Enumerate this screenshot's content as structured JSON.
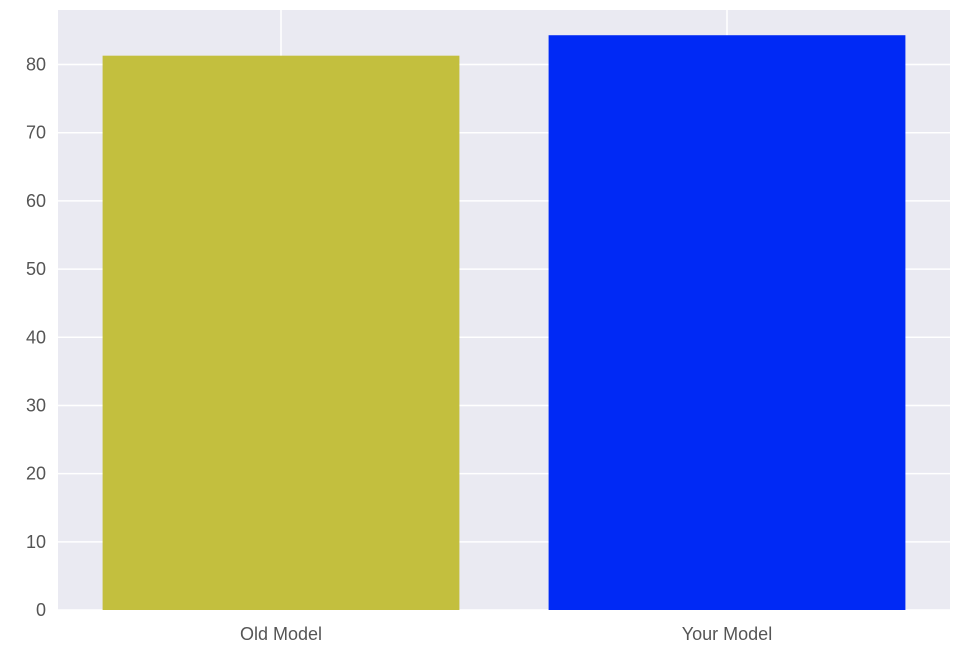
{
  "colors": {
    "plot_background": "#eaeaf2",
    "grid": "#ffffff",
    "tick_text": "#555555"
  },
  "chart_data": {
    "type": "bar",
    "categories": [
      "Old Model",
      "Your Model"
    ],
    "values": [
      81.3,
      84.3
    ],
    "bar_colors": [
      "#c3bf3e",
      "#0029f5"
    ],
    "title": "",
    "xlabel": "",
    "ylabel": "",
    "ylim": [
      0,
      88
    ],
    "yticks": [
      0,
      10,
      20,
      30,
      40,
      50,
      60,
      70,
      80
    ],
    "grid": true,
    "legend": "none"
  }
}
